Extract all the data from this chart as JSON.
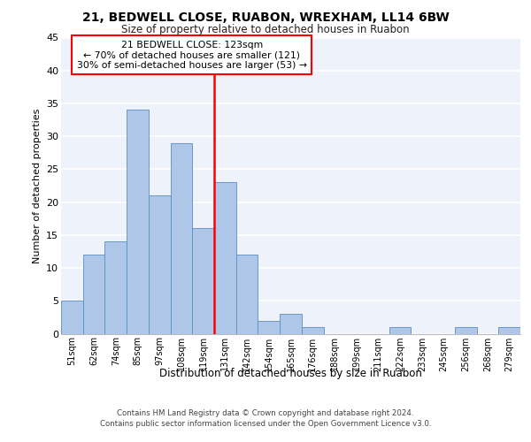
{
  "title": "21, BEDWELL CLOSE, RUABON, WREXHAM, LL14 6BW",
  "subtitle": "Size of property relative to detached houses in Ruabon",
  "xlabel": "Distribution of detached houses by size in Ruabon",
  "ylabel": "Number of detached properties",
  "bin_labels": [
    "51sqm",
    "62sqm",
    "74sqm",
    "85sqm",
    "97sqm",
    "108sqm",
    "119sqm",
    "131sqm",
    "142sqm",
    "154sqm",
    "165sqm",
    "176sqm",
    "188sqm",
    "199sqm",
    "211sqm",
    "222sqm",
    "233sqm",
    "245sqm",
    "256sqm",
    "268sqm",
    "279sqm"
  ],
  "bar_values": [
    5,
    12,
    14,
    34,
    21,
    29,
    16,
    23,
    12,
    2,
    3,
    1,
    0,
    0,
    0,
    1,
    0,
    0,
    1,
    0,
    1
  ],
  "bar_color": "#aec6e8",
  "bar_edge_color": "#5a8fc2",
  "vline_color": "red",
  "vline_bin_index": 7,
  "annotation_line1": "21 BEDWELL CLOSE: 123sqm",
  "annotation_line2": "← 70% of detached houses are smaller (121)",
  "annotation_line3": "30% of semi-detached houses are larger (53) →",
  "annotation_box_color": "white",
  "annotation_box_edge": "red",
  "ylim": [
    0,
    45
  ],
  "yticks": [
    0,
    5,
    10,
    15,
    20,
    25,
    30,
    35,
    40,
    45
  ],
  "background_color": "#eef2fb",
  "footer_line1": "Contains HM Land Registry data © Crown copyright and database right 2024.",
  "footer_line2": "Contains public sector information licensed under the Open Government Licence v3.0."
}
